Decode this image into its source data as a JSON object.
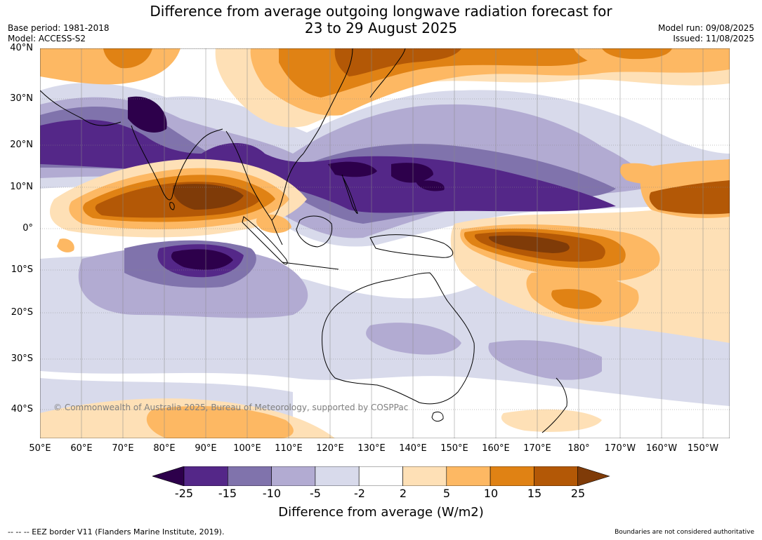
{
  "header": {
    "title_line1": "Difference from average outgoing longwave radiation forecast for",
    "title_line2": "23 to 29 August 2025",
    "base_period": "Base period: 1981-2018",
    "model": "Model: ACCESS-S2",
    "model_run": "Model run: 09/08/2025",
    "issued": "Issued: 11/08/2025"
  },
  "map": {
    "lat_labels": [
      "40°N",
      "30°N",
      "20°N",
      "10°N",
      "0°",
      "10°S",
      "20°S",
      "30°S",
      "40°S"
    ],
    "lon_labels": [
      "50°E",
      "60°E",
      "70°E",
      "80°E",
      "90°E",
      "100°E",
      "110°E",
      "120°E",
      "130°E",
      "140°E",
      "150°E",
      "160°E",
      "170°E",
      "180°",
      "170°W",
      "160°W",
      "150°W"
    ],
    "copyright": "© Commonwealth of Australia 2025, Bureau of Meteorology, supported by COSPPac"
  },
  "colorbar": {
    "tick_labels": [
      "-25",
      "-15",
      "-10",
      "-5",
      "-2",
      "2",
      "5",
      "10",
      "15",
      "25"
    ],
    "title": "Difference from average (W/m2)",
    "colors": [
      "#2d004b",
      "#542788",
      "#8073ac",
      "#b2abd2",
      "#d8daeb",
      "#ffffff",
      "#fee0b6",
      "#fdb863",
      "#e08214",
      "#b35806",
      "#7f3b08"
    ]
  },
  "footer": {
    "eez": "--  --  -- EEZ border V11 (Flanders Marine Institute, 2019).",
    "disclaimer": "Boundaries are not considered authoritative"
  }
}
